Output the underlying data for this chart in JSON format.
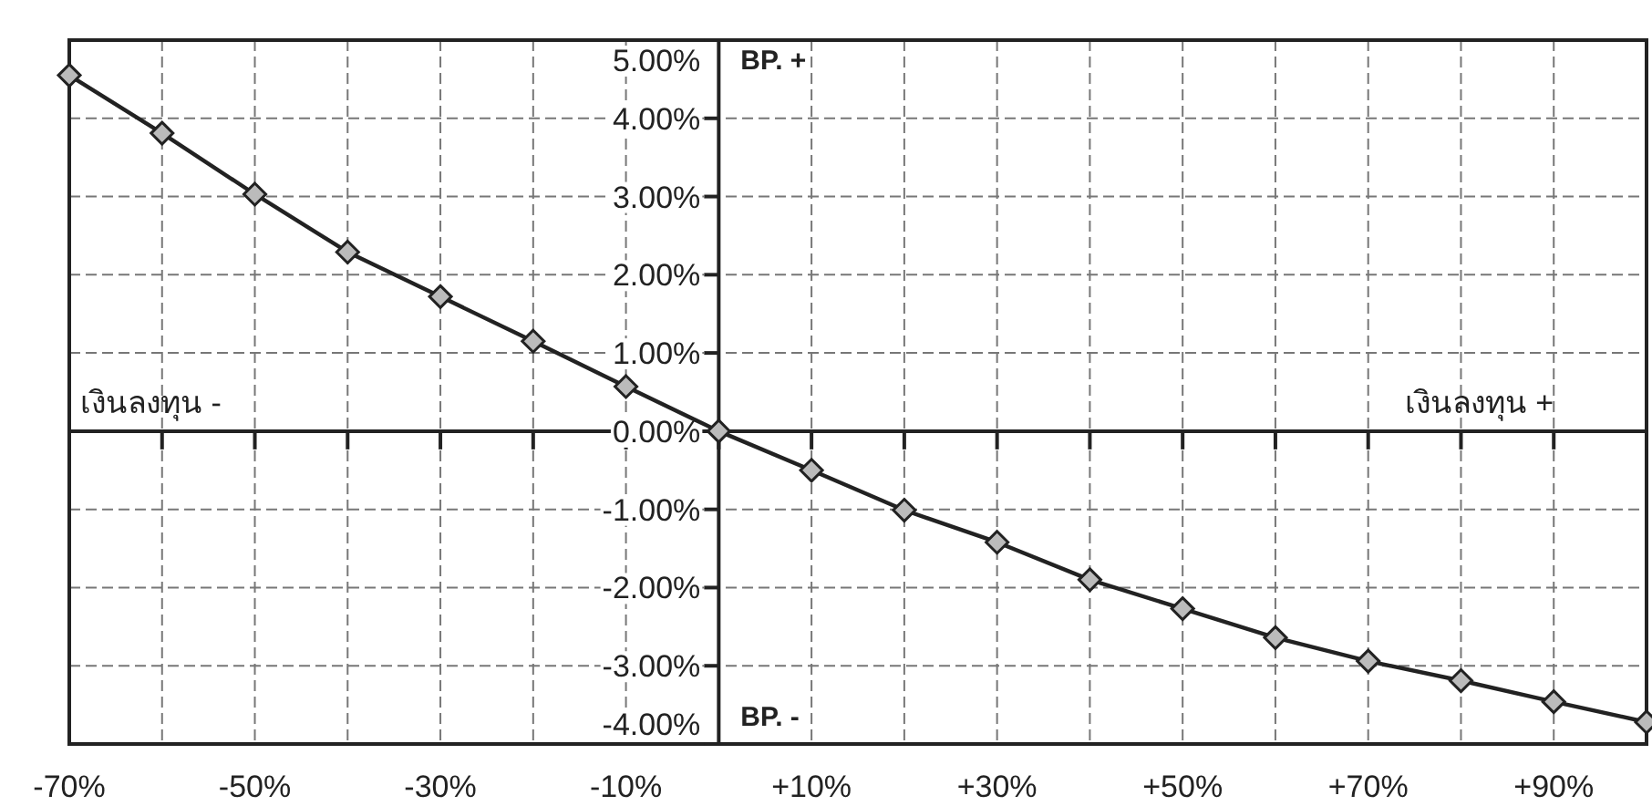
{
  "chart_data": {
    "type": "line",
    "x": [
      -70,
      -60,
      -50,
      -40,
      -30,
      -20,
      -10,
      0,
      10,
      20,
      30,
      40,
      50,
      60,
      70,
      80,
      90,
      100
    ],
    "series": [
      {
        "color": "#222222",
        "values": [
          4.55,
          3.81,
          3.03,
          2.29,
          1.72,
          1.15,
          0.57,
          0,
          -0.5,
          -1.01,
          -1.42,
          -1.9,
          -2.27,
          -2.64,
          -2.94,
          -3.19,
          -3.46,
          -3.72
        ]
      }
    ],
    "xlim": [
      -70,
      100
    ],
    "ylim": [
      -4,
      5
    ],
    "xticks": [
      {
        "value": -70,
        "label": "-70%"
      },
      {
        "value": -60,
        "label": null
      },
      {
        "value": -50,
        "label": "-50%"
      },
      {
        "value": -40,
        "label": null
      },
      {
        "value": -30,
        "label": "-30%"
      },
      {
        "value": -20,
        "label": null
      },
      {
        "value": -10,
        "label": "-10%"
      },
      {
        "value": 0,
        "label": null
      },
      {
        "value": 10,
        "label": "+10%"
      },
      {
        "value": 20,
        "label": null
      },
      {
        "value": 30,
        "label": "+30%"
      },
      {
        "value": 40,
        "label": null
      },
      {
        "value": 50,
        "label": "+50%"
      },
      {
        "value": 60,
        "label": null
      },
      {
        "value": 70,
        "label": "+70%"
      },
      {
        "value": 80,
        "label": null
      },
      {
        "value": 90,
        "label": "+90%"
      },
      {
        "value": 100,
        "label": null
      }
    ],
    "yticks": [
      {
        "value": 5,
        "label": "5.00%"
      },
      {
        "value": 4,
        "label": "4.00%"
      },
      {
        "value": 3,
        "label": "3.00%"
      },
      {
        "value": 2,
        "label": "2.00%"
      },
      {
        "value": 1,
        "label": "1.00%"
      },
      {
        "value": 0,
        "label": "0.00%"
      },
      {
        "value": -1,
        "label": "-1.00%"
      },
      {
        "value": -2,
        "label": "-2.00%"
      },
      {
        "value": -3,
        "label": "-3.00%"
      },
      {
        "value": -4,
        "label": "-4.00%"
      }
    ],
    "annotations": [
      "BP. +",
      "BP. -",
      "เงินลงทุน -",
      "เงินลงทุน +"
    ],
    "grid": true,
    "marker": "diamond",
    "line_style": "solid"
  }
}
